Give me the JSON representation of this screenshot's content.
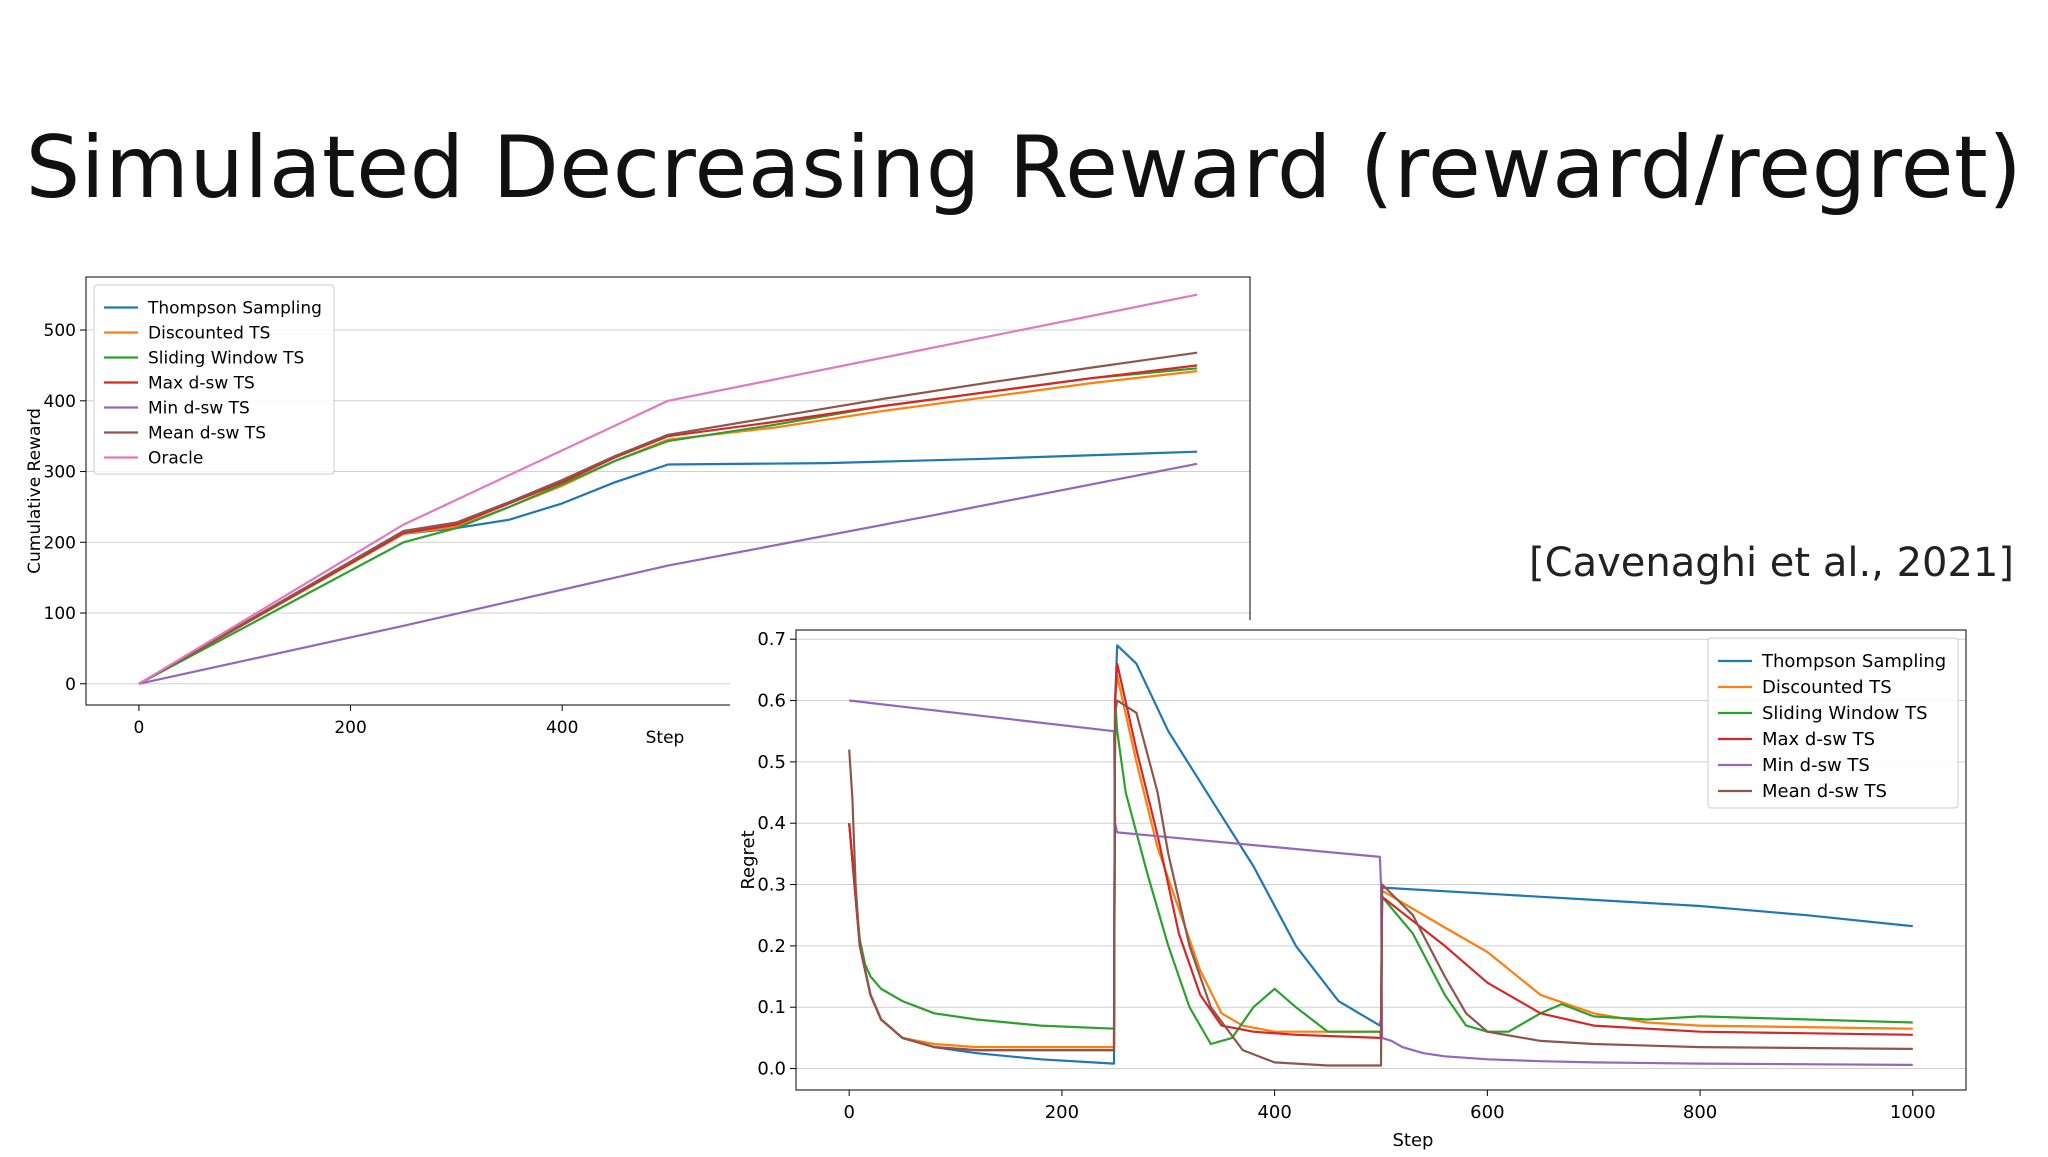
{
  "slide": {
    "title": "Simulated Decreasing Reward (reward/regret)",
    "citation": "[Cavenaghi et al., 2021]"
  },
  "colors": {
    "Thompson Sampling": "#1f77b4",
    "Discounted TS": "#ff7f0e",
    "Sliding Window TS": "#2ca02c",
    "Max d-sw TS": "#d62728",
    "Min d-sw TS": "#9467bd",
    "Mean d-sw TS": "#8c564b",
    "Oracle": "#e377c2"
  },
  "chart_data": [
    {
      "type": "line",
      "xlabel": "Step",
      "ylabel": "Cumulative Reward",
      "xlim": [
        -50,
        1050
      ],
      "ylim": [
        -30,
        575
      ],
      "xticks": [
        0,
        200,
        400
      ],
      "yticks": [
        0,
        100,
        200,
        300,
        400,
        500
      ],
      "grid": "horizontal",
      "legend_position": "top-left",
      "series": [
        {
          "name": "Thompson Sampling",
          "x": [
            0,
            250,
            300,
            350,
            400,
            450,
            500,
            650,
            800,
            1000
          ],
          "y": [
            0,
            212,
            220,
            232,
            255,
            285,
            310,
            312,
            318,
            328
          ]
        },
        {
          "name": "Discounted TS",
          "x": [
            0,
            250,
            300,
            350,
            400,
            450,
            500,
            600,
            700,
            800,
            900,
            1000
          ],
          "y": [
            0,
            212,
            222,
            250,
            280,
            315,
            345,
            362,
            385,
            405,
            425,
            442
          ]
        },
        {
          "name": "Sliding Window TS",
          "x": [
            0,
            250,
            300,
            350,
            400,
            450,
            500,
            600,
            700,
            800,
            900,
            1000
          ],
          "y": [
            0,
            200,
            220,
            250,
            282,
            315,
            343,
            366,
            392,
            412,
            432,
            446
          ]
        },
        {
          "name": "Max d-sw TS",
          "x": [
            0,
            250,
            300,
            350,
            400,
            450,
            500,
            600,
            700,
            800,
            900,
            1000
          ],
          "y": [
            0,
            213,
            225,
            255,
            285,
            320,
            350,
            370,
            392,
            412,
            432,
            450
          ]
        },
        {
          "name": "Min d-sw TS",
          "x": [
            0,
            250,
            500,
            750,
            1000
          ],
          "y": [
            0,
            82,
            167,
            238,
            311
          ]
        },
        {
          "name": "Mean d-sw TS",
          "x": [
            0,
            250,
            300,
            350,
            400,
            450,
            500,
            600,
            700,
            800,
            900,
            1000
          ],
          "y": [
            0,
            216,
            228,
            257,
            288,
            322,
            352,
            377,
            402,
            425,
            447,
            468
          ]
        },
        {
          "name": "Oracle",
          "x": [
            0,
            250,
            500,
            1000
          ],
          "y": [
            0,
            225,
            400,
            550
          ]
        }
      ]
    },
    {
      "type": "line",
      "xlabel": "Step",
      "ylabel": "Regret",
      "xlim": [
        -50,
        1050
      ],
      "ylim": [
        -0.035,
        0.715
      ],
      "xticks": [
        0,
        200,
        400,
        600,
        800,
        1000
      ],
      "yticks": [
        0.0,
        0.1,
        0.2,
        0.3,
        0.4,
        0.5,
        0.6,
        0.7
      ],
      "grid": "horizontal",
      "legend_position": "top-right",
      "series": [
        {
          "name": "Thompson Sampling",
          "x": [
            0,
            5,
            10,
            20,
            30,
            50,
            80,
            120,
            180,
            249,
            250,
            252,
            270,
            300,
            340,
            380,
            420,
            460,
            499,
            500,
            501,
            600,
            700,
            800,
            900,
            1000
          ],
          "y": [
            0.4,
            0.3,
            0.2,
            0.12,
            0.08,
            0.05,
            0.035,
            0.025,
            0.015,
            0.008,
            0.6,
            0.69,
            0.66,
            0.55,
            0.44,
            0.33,
            0.2,
            0.11,
            0.07,
            0.08,
            0.295,
            0.285,
            0.275,
            0.265,
            0.25,
            0.232
          ]
        },
        {
          "name": "Discounted TS",
          "x": [
            0,
            5,
            10,
            20,
            30,
            50,
            80,
            120,
            249,
            250,
            252,
            270,
            290,
            310,
            330,
            350,
            370,
            400,
            450,
            499,
            500,
            501,
            560,
            600,
            650,
            700,
            750,
            800,
            1000
          ],
          "y": [
            0.4,
            0.3,
            0.2,
            0.12,
            0.08,
            0.05,
            0.04,
            0.035,
            0.035,
            0.6,
            0.64,
            0.5,
            0.36,
            0.26,
            0.16,
            0.09,
            0.07,
            0.06,
            0.06,
            0.06,
            0.05,
            0.29,
            0.23,
            0.19,
            0.12,
            0.09,
            0.075,
            0.07,
            0.065
          ]
        },
        {
          "name": "Sliding Window TS",
          "x": [
            0,
            5,
            10,
            15,
            20,
            30,
            50,
            80,
            120,
            180,
            249,
            250,
            252,
            260,
            280,
            300,
            320,
            340,
            360,
            380,
            400,
            420,
            450,
            499,
            500,
            501,
            530,
            560,
            580,
            600,
            620,
            650,
            670,
            700,
            750,
            800,
            1000
          ],
          "y": [
            0.4,
            0.3,
            0.21,
            0.17,
            0.15,
            0.13,
            0.11,
            0.09,
            0.08,
            0.07,
            0.065,
            0.6,
            0.55,
            0.45,
            0.32,
            0.2,
            0.1,
            0.04,
            0.05,
            0.1,
            0.13,
            0.1,
            0.06,
            0.06,
            0.06,
            0.28,
            0.22,
            0.12,
            0.07,
            0.06,
            0.06,
            0.09,
            0.105,
            0.085,
            0.08,
            0.085,
            0.075
          ]
        },
        {
          "name": "Max d-sw TS",
          "x": [
            0,
            5,
            10,
            20,
            30,
            50,
            80,
            120,
            249,
            250,
            252,
            270,
            290,
            310,
            330,
            350,
            380,
            420,
            499,
            500,
            501,
            560,
            600,
            650,
            700,
            800,
            1000
          ],
          "y": [
            0.4,
            0.3,
            0.2,
            0.12,
            0.08,
            0.05,
            0.035,
            0.03,
            0.03,
            0.6,
            0.66,
            0.52,
            0.38,
            0.22,
            0.12,
            0.07,
            0.06,
            0.055,
            0.05,
            0.05,
            0.28,
            0.2,
            0.14,
            0.09,
            0.07,
            0.06,
            0.055
          ]
        },
        {
          "name": "Min d-sw TS",
          "x": [
            0,
            249,
            250,
            252,
            499,
            500,
            501,
            510,
            520,
            540,
            560,
            600,
            650,
            700,
            800,
            1000
          ],
          "y": [
            0.6,
            0.55,
            0.4,
            0.385,
            0.345,
            0.3,
            0.05,
            0.045,
            0.035,
            0.025,
            0.02,
            0.015,
            0.012,
            0.01,
            0.008,
            0.006
          ]
        },
        {
          "name": "Mean d-sw TS",
          "x": [
            0,
            3,
            6,
            10,
            20,
            30,
            50,
            80,
            120,
            249,
            250,
            252,
            270,
            290,
            300,
            320,
            340,
            370,
            400,
            450,
            499,
            500,
            501,
            530,
            560,
            580,
            600,
            650,
            700,
            800,
            1000
          ],
          "y": [
            0.52,
            0.44,
            0.3,
            0.2,
            0.12,
            0.08,
            0.05,
            0.035,
            0.03,
            0.03,
            0.58,
            0.6,
            0.58,
            0.45,
            0.35,
            0.2,
            0.1,
            0.03,
            0.01,
            0.005,
            0.005,
            0.005,
            0.3,
            0.25,
            0.15,
            0.09,
            0.06,
            0.045,
            0.04,
            0.035,
            0.032
          ]
        }
      ]
    }
  ]
}
